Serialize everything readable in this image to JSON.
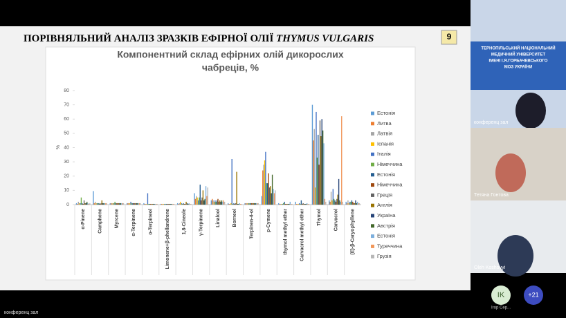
{
  "slide": {
    "title": "ПОРІВНЯЛЬНИЙ АНАЛІЗ ЗРАЗКІВ ЕФІРНОЇ ОЛІЇ",
    "title_italic": "THYMUS VULGARIS",
    "number": "9"
  },
  "chart_data": {
    "type": "bar",
    "title": [
      "Компонентний склад ефірних олій дикорослих",
      "чабреців, %"
    ],
    "ylabel": "%",
    "categories": [
      "α-Pinene",
      "Camphene",
      "Myrcene",
      "α-Terpinene",
      "α-Terpineol",
      "Limonene+β-phellandrene",
      "1,8-Cineole",
      "γ-Terpinene",
      "Linalool",
      "Borneol",
      "Terpinen-4-ol",
      "p-Cymene",
      "thymol methyl ether",
      "Carvacrol methyl ether",
      "Thymol",
      "Carvacrol",
      "(E)-β-Caryophyllene"
    ],
    "ylim": [
      0,
      80
    ],
    "yticks": [
      0,
      10,
      20,
      30,
      40,
      50,
      60,
      70,
      80
    ],
    "grid": false,
    "legend": "right",
    "series": [
      {
        "name": "Естонія",
        "color": "#5b9bd5",
        "values": [
          1,
          9.5,
          1,
          1,
          1,
          0.5,
          1,
          8,
          3,
          1,
          1,
          6,
          1,
          2,
          70,
          3,
          2
        ]
      },
      {
        "name": "Литва",
        "color": "#ed7d31",
        "values": [
          0.5,
          1,
          1,
          1,
          0.5,
          0.5,
          0.5,
          4,
          4,
          0.5,
          1,
          24,
          0.5,
          0.5,
          45,
          2,
          1
        ]
      },
      {
        "name": "Латвія",
        "color": "#a5a5a5",
        "values": [
          2,
          2,
          1,
          1,
          0.5,
          0.5,
          1,
          6,
          3,
          0.5,
          1,
          28,
          0.5,
          0.5,
          53,
          9,
          3
        ]
      },
      {
        "name": "Іспанія",
        "color": "#ffc000",
        "values": [
          1,
          1,
          1,
          1,
          0.5,
          0.5,
          2,
          5,
          2,
          1,
          1,
          31,
          0.5,
          0.5,
          12,
          3,
          1
        ]
      },
      {
        "name": "Італія",
        "color": "#4472c4",
        "values": [
          1,
          1,
          1,
          2,
          8,
          0.5,
          1,
          3,
          3,
          32,
          1,
          37,
          0.5,
          1,
          65,
          11,
          2
        ]
      },
      {
        "name": "Німеччина",
        "color": "#70ad47",
        "values": [
          5,
          1,
          2,
          1,
          0.5,
          0.5,
          0.5,
          5,
          2,
          0.5,
          1,
          15,
          1,
          0.5,
          33,
          4,
          2
        ]
      },
      {
        "name": "Естонія",
        "color": "#255e91",
        "values": [
          1,
          1,
          1,
          1,
          0.5,
          0.5,
          1,
          14,
          3,
          1,
          1,
          15,
          2,
          3,
          49,
          3,
          3
        ]
      },
      {
        "name": "Німеччина",
        "color": "#9e480e",
        "values": [
          0.5,
          0.5,
          1,
          1,
          0.5,
          0.5,
          0.5,
          3,
          4,
          0.5,
          1,
          22,
          0.5,
          0.5,
          28,
          2,
          2
        ]
      },
      {
        "name": "Греція",
        "color": "#636363",
        "values": [
          3,
          1,
          1,
          1,
          0.5,
          0.5,
          0.5,
          5,
          2,
          1,
          1,
          12,
          0.5,
          1,
          59,
          4,
          1
        ]
      },
      {
        "name": "Англія",
        "color": "#997300",
        "values": [
          1,
          3,
          1,
          1,
          0.5,
          0.5,
          2,
          10,
          3,
          23,
          1,
          13,
          0.5,
          0.5,
          48,
          7,
          1
        ]
      },
      {
        "name": "Україна",
        "color": "#264478",
        "values": [
          1,
          1,
          1,
          1,
          0.5,
          0.5,
          1,
          3,
          2,
          0.5,
          1,
          8,
          0.5,
          0.5,
          60,
          18,
          3
        ]
      },
      {
        "name": "Австрія",
        "color": "#43682b",
        "values": [
          2,
          1,
          1,
          1,
          0.5,
          0.5,
          0.5,
          4,
          3,
          0.5,
          1,
          21,
          0.5,
          0.5,
          52,
          3,
          1
        ]
      },
      {
        "name": "Естонія",
        "color": "#7cafdd",
        "values": [
          1,
          1,
          1,
          1,
          0.5,
          0.5,
          1,
          13,
          2,
          1,
          1,
          11,
          2,
          1,
          43,
          2,
          2
        ]
      },
      {
        "name": "Туреччина",
        "color": "#f1975a",
        "values": [
          0.5,
          1,
          1,
          1,
          0.5,
          0.5,
          0.5,
          6,
          3,
          0.5,
          1,
          8,
          0.5,
          0.5,
          4,
          62,
          1
        ]
      },
      {
        "name": "Грузія",
        "color": "#b7b7b7",
        "values": [
          1,
          1,
          1,
          1,
          0.5,
          0.5,
          0.5,
          12,
          2,
          0.5,
          1,
          10,
          0.5,
          0.5,
          2,
          2,
          1
        ]
      }
    ]
  },
  "conference": {
    "banner": [
      "ТЕРНОПІЛЬСЬКИЙ НАЦІОНАЛЬНИЙ",
      "МЕДИЧНИЙ УНІВЕРСИТЕТ",
      "ІМЕНІ І.Я.ГОРБАЧЕВСЬКОГО",
      "МОЗ УКРАЇНИ"
    ],
    "tiles": [
      "конференц зал",
      "Тетяна Гонтова",
      "Oleh Koshovyi"
    ],
    "avatar": "IK",
    "avatar_name": "Ігор Сер...",
    "more": "+21",
    "presenter": "конференц зал"
  }
}
